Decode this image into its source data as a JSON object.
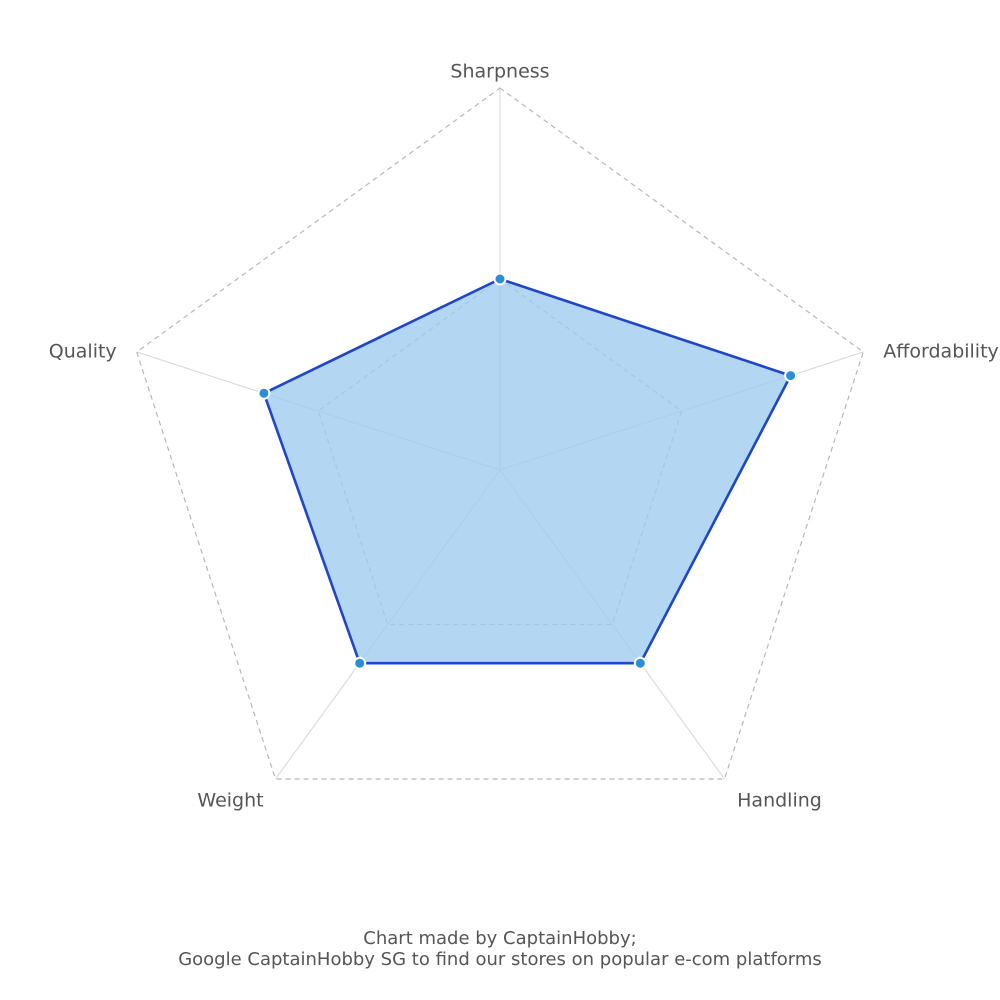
{
  "chart_data": {
    "type": "radar",
    "axes": [
      "Sharpness",
      "Affordability",
      "Handling",
      "Weight",
      "Quality"
    ],
    "max": 4,
    "grid_levels": [
      2,
      4
    ],
    "grid_style": "dashed polygons",
    "series": [
      {
        "values": [
          2.0,
          3.2,
          2.5,
          2.5,
          2.6
        ]
      }
    ],
    "colors": {
      "line": "#1f45c9",
      "fill": "#9ecbee",
      "point": "#2b8fd6",
      "grid": "#b8b8b8",
      "spoke": "#d7d7d7"
    }
  },
  "footer": {
    "line1": "Chart made by CaptainHobby;",
    "line2": "Google CaptainHobby SG to find our stores on popular e-com platforms"
  }
}
